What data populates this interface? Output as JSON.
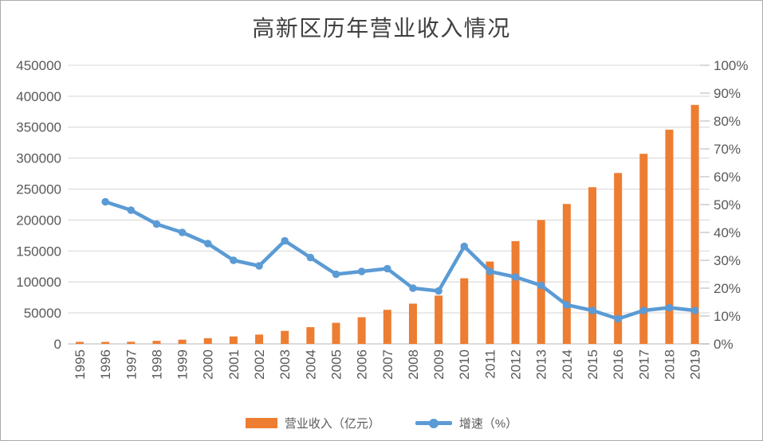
{
  "title": "高新区历年营业收入情况",
  "legend": {
    "revenue": "营业收入（亿元）",
    "growth": "增速（%）"
  },
  "colors": {
    "bar": "#ED7D31",
    "line": "#5B9BD5",
    "grid": "#D9D9D9",
    "axis_line": "#CFCFCF",
    "tick_mark": "#BFBFBF",
    "axis_text": "#595959",
    "title_text": "#404040"
  },
  "chart_data": {
    "type": "combo-bar-line",
    "title": "高新区历年营业收入情况",
    "categories": [
      "1995",
      "1996",
      "1997",
      "1998",
      "1999",
      "2000",
      "2001",
      "2002",
      "2003",
      "2004",
      "2005",
      "2006",
      "2007",
      "2008",
      "2009",
      "2010",
      "2011",
      "2012",
      "2013",
      "2014",
      "2015",
      "2016",
      "2017",
      "2018",
      "2019"
    ],
    "series": [
      {
        "name": "营业收入（亿元）",
        "type": "bar",
        "yaxis": "left",
        "color": "#ED7D31",
        "values": [
          1500,
          2300,
          3400,
          4900,
          6800,
          9200,
          12000,
          15000,
          21000,
          27000,
          34000,
          43000,
          55000,
          65000,
          78000,
          106000,
          133000,
          166000,
          200000,
          226000,
          253000,
          276000,
          307000,
          346000,
          386000
        ]
      },
      {
        "name": "增速（%）",
        "type": "line",
        "yaxis": "right",
        "color": "#5B9BD5",
        "values": [
          null,
          51,
          48,
          43,
          40,
          36,
          30,
          28,
          37,
          31,
          25,
          26,
          27,
          20,
          19,
          35,
          26,
          24,
          21,
          14,
          12,
          9,
          12,
          13,
          12
        ]
      }
    ],
    "left_axis": {
      "min": 0,
      "max": 450000,
      "step": 50000,
      "tick_labels": [
        "0",
        "50000",
        "100000",
        "150000",
        "200000",
        "250000",
        "300000",
        "350000",
        "400000",
        "450000"
      ]
    },
    "right_axis": {
      "min": 0,
      "max": 100,
      "step": 10,
      "tick_labels": [
        "0%",
        "10%",
        "20%",
        "30%",
        "40%",
        "50%",
        "60%",
        "70%",
        "80%",
        "90%",
        "100%"
      ]
    },
    "grid": true,
    "legend_position": "bottom"
  }
}
